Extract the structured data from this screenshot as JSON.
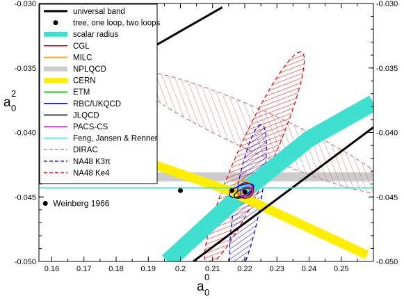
{
  "chart_data": {
    "type": "scatter",
    "xlabel": "a",
    "xlabel_sub": "0",
    "xlabel_sup": "0",
    "ylabel": "a",
    "ylabel_sub": "0",
    "ylabel_sup": "2",
    "xlim": [
      0.156,
      0.26
    ],
    "ylim": [
      -0.05,
      -0.03
    ],
    "x_ticks": [
      {
        "v": 0.16,
        "label": "0.16"
      },
      {
        "v": 0.17,
        "label": "0.17"
      },
      {
        "v": 0.18,
        "label": "0.18"
      },
      {
        "v": 0.19,
        "label": "0.19"
      },
      {
        "v": 0.2,
        "label": "0.2"
      },
      {
        "v": 0.21,
        "label": "0.21"
      },
      {
        "v": 0.22,
        "label": "0.22"
      },
      {
        "v": 0.23,
        "label": "0.23"
      },
      {
        "v": 0.24,
        "label": "0.24"
      },
      {
        "v": 0.25,
        "label": "0.25"
      }
    ],
    "y_ticks": [
      {
        "v": -0.03,
        "label": "-0.030"
      },
      {
        "v": -0.035,
        "label": "-0.035"
      },
      {
        "v": -0.04,
        "label": "-0.040"
      },
      {
        "v": -0.045,
        "label": "-0.045"
      },
      {
        "v": -0.05,
        "label": "-0.050"
      }
    ],
    "grid": false,
    "legend_position": "top-left",
    "legend": [
      {
        "label": "universal band",
        "color": "#000000",
        "style": "thick-line"
      },
      {
        "label": "tree, one loop, two loops",
        "color": "#000000",
        "style": "dot"
      },
      {
        "label": "scalar radius",
        "color": "#40e0d0",
        "style": "band"
      },
      {
        "label": "CGL",
        "color": "#e00000",
        "style": "line"
      },
      {
        "label": "MILC",
        "color": "#ff9900",
        "style": "line"
      },
      {
        "label": "NPLQCD",
        "color": "#cccccc",
        "style": "band"
      },
      {
        "label": "CERN",
        "color": "#ffee00",
        "style": "band"
      },
      {
        "label": "ETM",
        "color": "#00cc00",
        "style": "line"
      },
      {
        "label": "RBC/UKQCD",
        "color": "#0000cc",
        "style": "line"
      },
      {
        "label": "JLQCD",
        "color": "#000000",
        "style": "line"
      },
      {
        "label": "PACS-CS",
        "color": "#ff00ff",
        "style": "line"
      },
      {
        "label": "Feng, Jansen & Renner",
        "color": "#40e0d0",
        "style": "line"
      },
      {
        "label": "DIRAC",
        "color": "#c08080",
        "style": "dashed"
      },
      {
        "label": "NA48 K3π",
        "color": "#0000cc",
        "style": "dashed"
      },
      {
        "label": "NA48 Ke4",
        "color": "#e00000",
        "style": "dashed"
      }
    ],
    "points": [
      {
        "name": "tree",
        "x": 0.2,
        "y": -0.0445
      },
      {
        "name": "one loop",
        "x": 0.216,
        "y": -0.0445
      },
      {
        "name": "two loops",
        "x": 0.22,
        "y": -0.0446
      }
    ],
    "annotations": [
      {
        "text": "Weinberg 1966",
        "x": 0.16,
        "y": -0.0455
      }
    ],
    "universal_band": {
      "upper": [
        [
          0.187,
          -0.034
        ],
        [
          0.213,
          -0.0303
        ]
      ],
      "lower": [
        [
          0.204,
          -0.05
        ],
        [
          0.26,
          -0.0396
        ]
      ]
    },
    "scalar_radius_band": [
      [
        0.196,
        -0.05
      ],
      [
        0.221,
        -0.0443
      ],
      [
        0.24,
        -0.0405
      ],
      [
        0.26,
        -0.0377
      ]
    ],
    "cern_band": [
      [
        0.17,
        -0.0406
      ],
      [
        0.215,
        -0.0445
      ],
      [
        0.258,
        -0.0495
      ]
    ],
    "nplqcd_band": {
      "y_center": -0.04344,
      "half_width": 0.00035
    },
    "feng_jansen_renner_line": {
      "y": -0.04429
    },
    "dirac_ellipse": {
      "cx": 0.225,
      "cy": -0.04,
      "half_x": 0.0065,
      "half_y": 0.011,
      "tilt": 0.5
    },
    "na48_k3pi_ellipse": {
      "cx": 0.221,
      "cy": -0.0453,
      "half_x": 0.004,
      "half_y": 0.006,
      "tilt": 0.35
    },
    "na48_ke4_ellipse": {
      "cx": 0.223,
      "cy": -0.042,
      "half_x": 0.0055,
      "half_y": 0.009,
      "tilt": 0.55
    },
    "ellipses": [
      {
        "name": "CGL",
        "color": "#e00000",
        "cx": 0.2202,
        "cy": -0.0445,
        "half_x": 0.0025,
        "half_y": 0.0006
      },
      {
        "name": "MILC",
        "color": "#ff9900",
        "cx": 0.2192,
        "cy": -0.0442,
        "half_x": 0.0025,
        "half_y": 0.0005
      },
      {
        "name": "ETM",
        "color": "#00cc00",
        "cx": 0.2203,
        "cy": -0.04465,
        "half_x": 0.0015,
        "half_y": 0.0004
      },
      {
        "name": "RBC/UKQCD",
        "color": "#0000cc",
        "cx": 0.219,
        "cy": -0.0445,
        "half_x": 0.004,
        "half_y": 0.0004
      },
      {
        "name": "JLQCD",
        "color": "#000000",
        "cx": 0.2195,
        "cy": -0.0447,
        "half_x": 0.003,
        "half_y": 0.0003
      },
      {
        "name": "PACS-CS",
        "color": "#ff00ff",
        "cx": 0.2205,
        "cy": -0.0446,
        "half_x": 0.002,
        "half_y": 0.00035
      }
    ],
    "weinberg_point": {
      "x": 0.158,
      "y": -0.0455
    }
  }
}
